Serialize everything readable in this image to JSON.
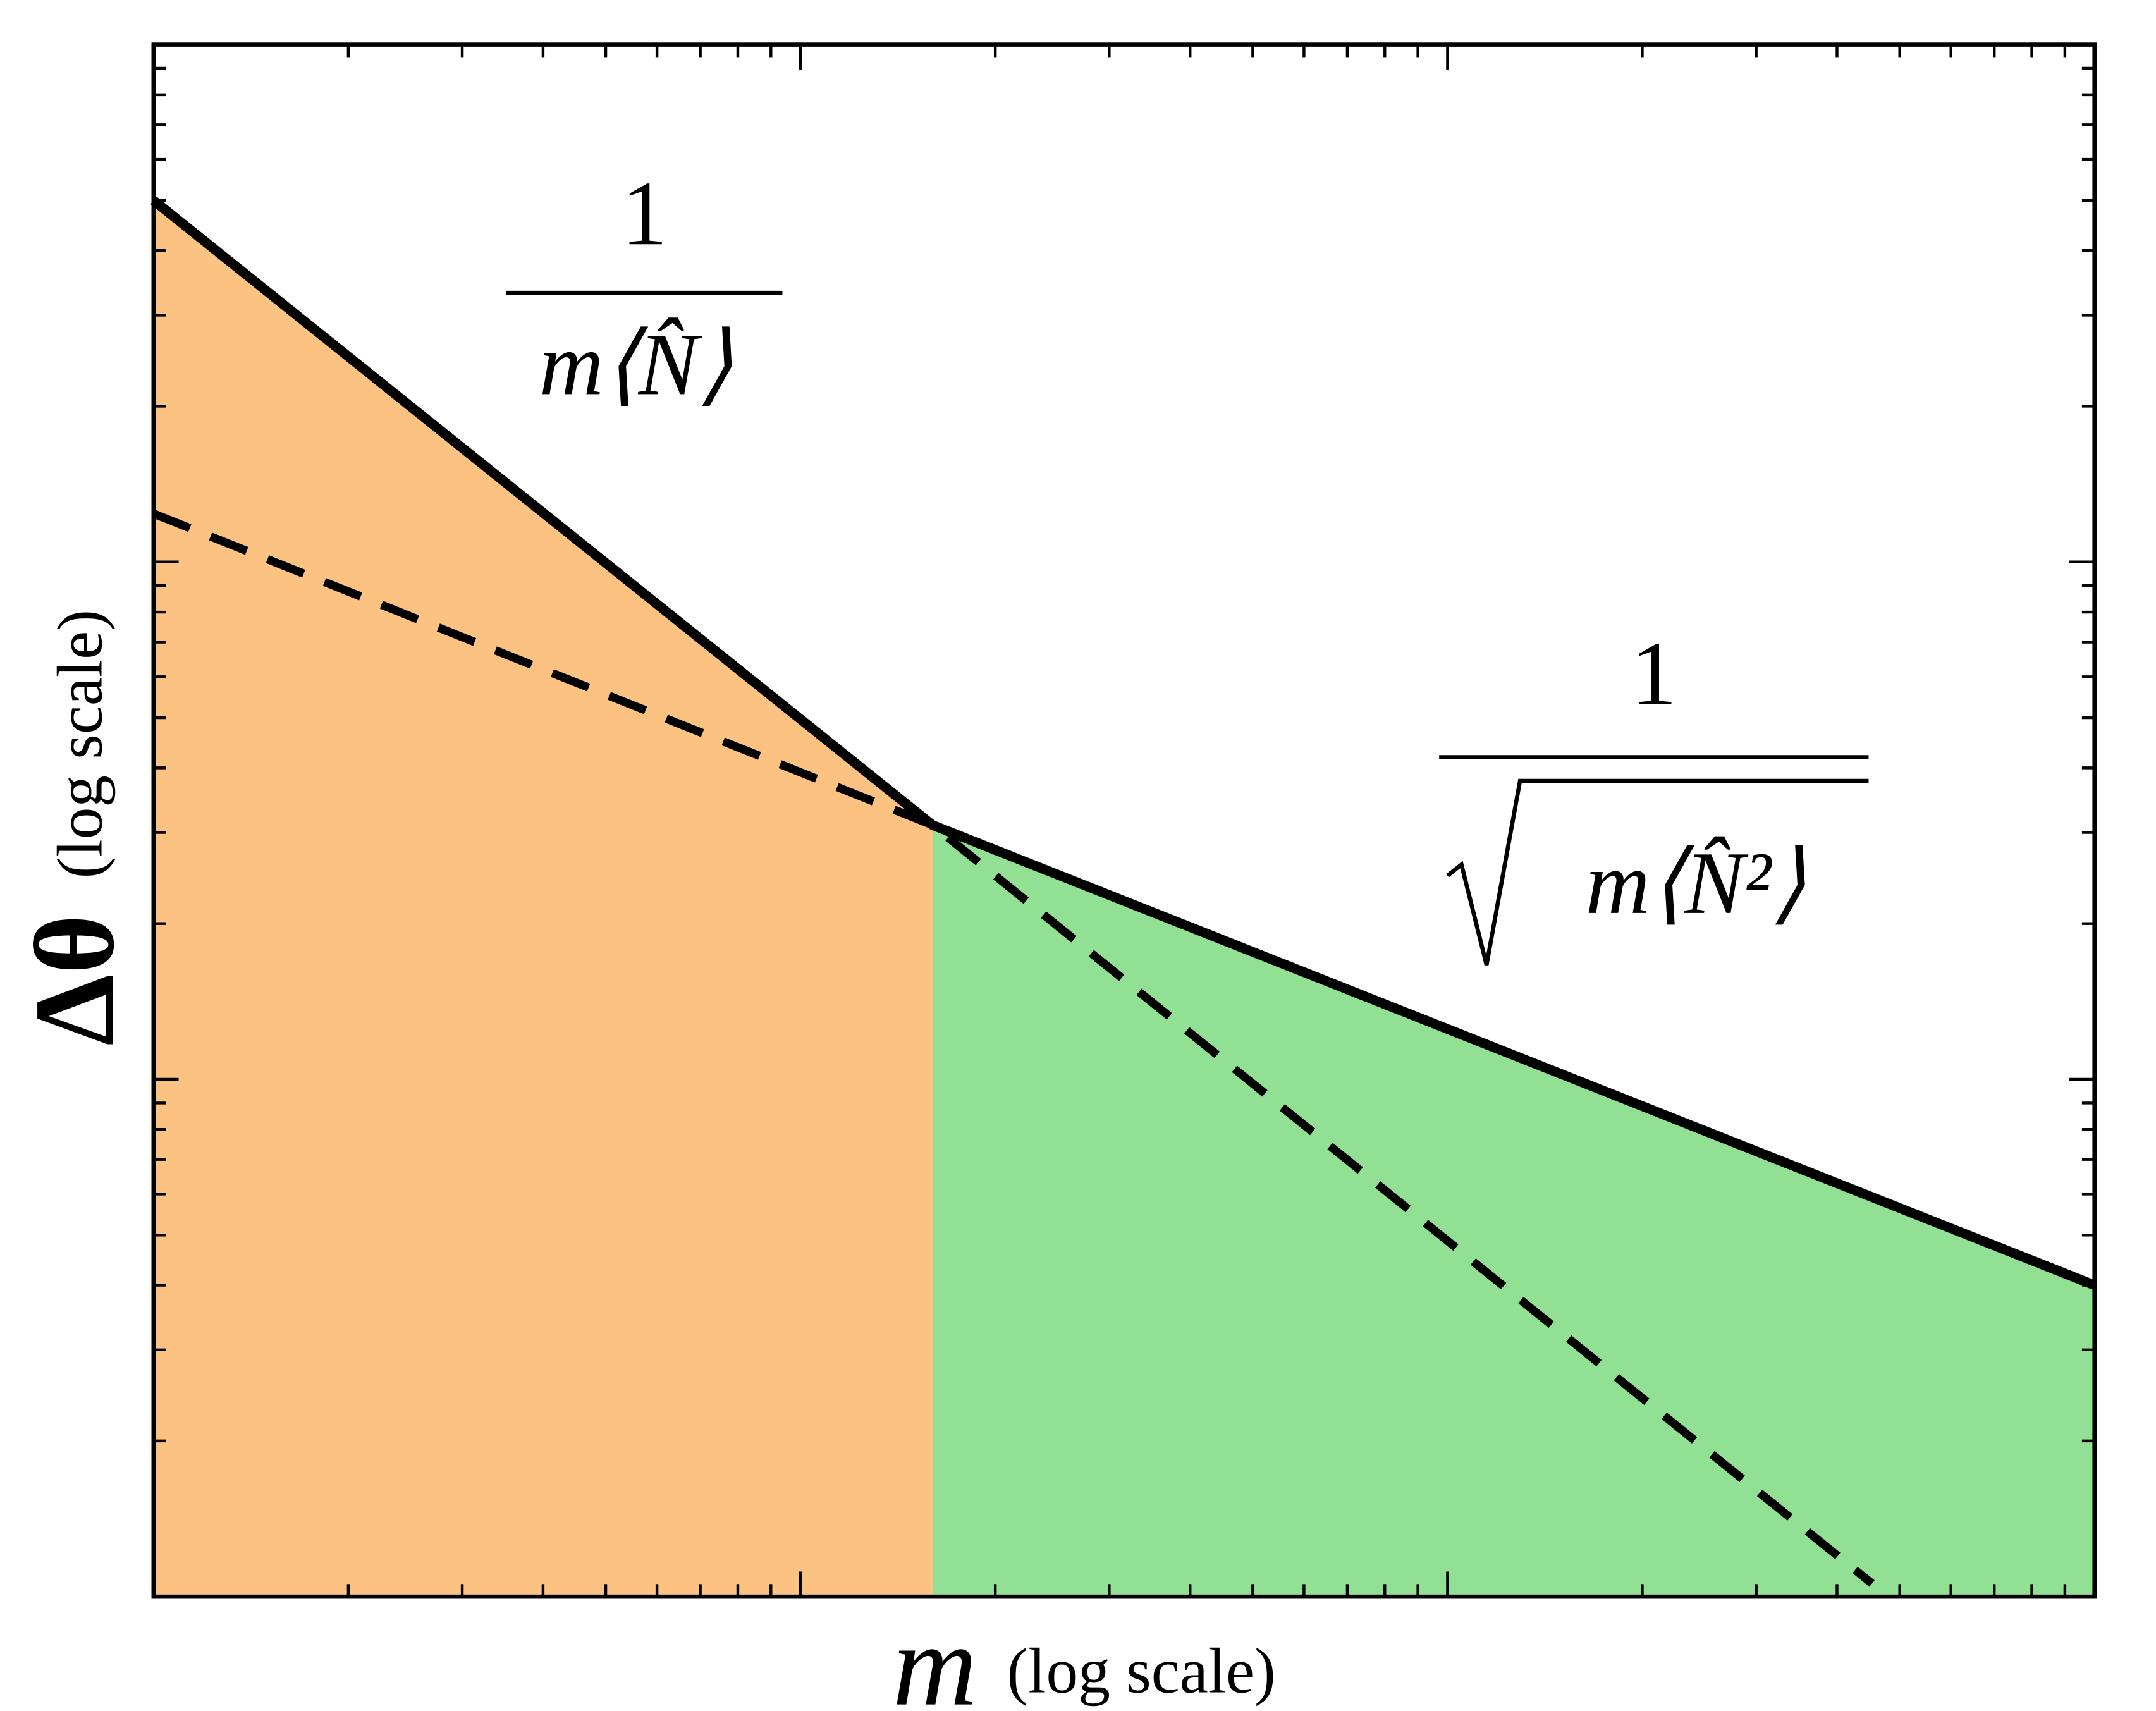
{
  "chart_data": {
    "type": "line",
    "xscale": "log",
    "yscale": "log",
    "xlim": [
      1,
      1000
    ],
    "ylim": [
      0.001,
      1
    ],
    "xticks": [
      10,
      100
    ],
    "xticks_minor": [
      2,
      3,
      4,
      5,
      6,
      7,
      8,
      9,
      20,
      30,
      40,
      50,
      60,
      70,
      80,
      90,
      200,
      300,
      400,
      500,
      600,
      700,
      800,
      900
    ],
    "yticks": [
      0.01,
      0.1
    ],
    "yticks_minor": [
      0.002,
      0.003,
      0.004,
      0.005,
      0.006,
      0.007,
      0.008,
      0.009,
      0.02,
      0.03,
      0.04,
      0.05,
      0.06,
      0.07,
      0.08,
      0.09,
      0.2,
      0.3,
      0.4,
      0.5,
      0.6,
      0.7,
      0.8,
      0.9
    ],
    "x_label": {
      "symbol": "m",
      "text": "(log scale)"
    },
    "y_label": {
      "symbol": "Δθ",
      "text": "(log scale)"
    },
    "fill_regions": [
      {
        "color": "#fcc281",
        "xlim": [
          1,
          16
        ]
      },
      {
        "color": "#92e093",
        "xlim": [
          16,
          1000
        ]
      }
    ],
    "series": [
      {
        "style": "solid",
        "color": "#000000",
        "x": [
          1,
          16,
          1000
        ],
        "values": [
          0.5,
          0.031,
          0.004
        ]
      },
      {
        "style": "dashed",
        "color": "#000000",
        "x": [
          1,
          16,
          453
        ],
        "values": [
          0.124,
          0.031,
          0.00106
        ]
      }
    ],
    "annotations": [
      {
        "numerator": "1",
        "denominator": "m⟨N̂⟩",
        "radical": false
      },
      {
        "numerator": "1",
        "denominator": "m⟨N̂²⟩",
        "radical": true
      }
    ]
  }
}
